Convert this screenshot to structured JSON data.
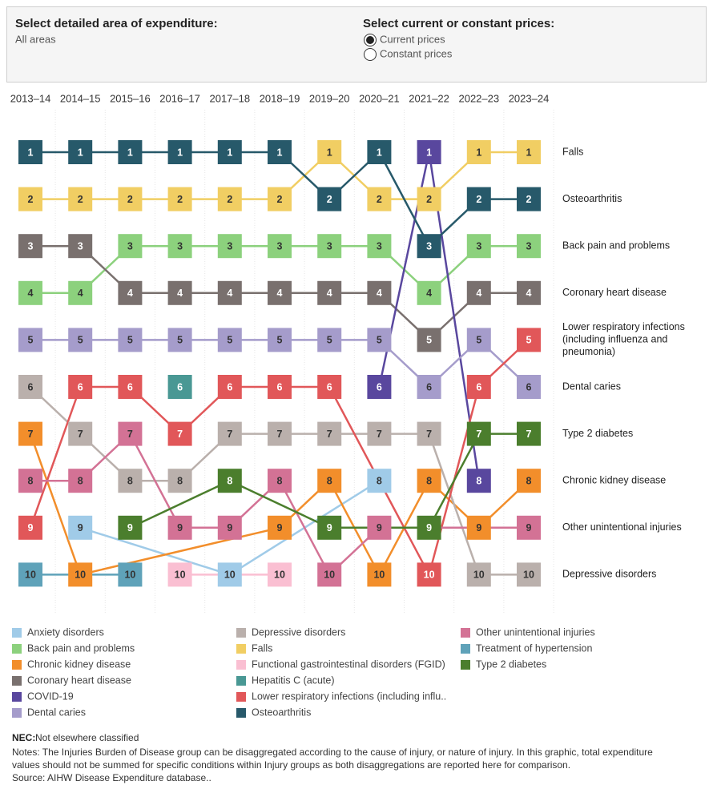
{
  "controls": {
    "area_title": "Select detailed area of expenditure:",
    "area_value": "All areas",
    "price_title": "Select current or constant prices:",
    "price_options": [
      "Current prices",
      "Constant prices"
    ],
    "selected": 0
  },
  "chart_data": {
    "type": "bump",
    "categories": [
      "2013–14",
      "2014–15",
      "2015–16",
      "2016–17",
      "2017–18",
      "2018–19",
      "2019–20",
      "2020–21",
      "2021–22",
      "2022–23",
      "2023–24"
    ],
    "ylim": [
      1,
      10
    ],
    "row_labels": [
      "Falls",
      "Osteoarthritis",
      "Back pain and problems",
      "Coronary heart disease",
      "Lower respiratory infections (including influenza and pneumonia)",
      "Dental caries",
      "Type 2 diabetes",
      "Chronic kidney disease",
      "Other unintentional injuries",
      "Depressive disorders"
    ],
    "series": [
      {
        "name": "Anxiety disorders",
        "color": "#a0cbe8",
        "values": [
          null,
          9,
          null,
          null,
          10,
          null,
          null,
          8,
          null,
          null,
          null
        ]
      },
      {
        "name": "Back pain and problems",
        "color": "#8cd17d",
        "values": [
          4,
          4,
          3,
          3,
          3,
          3,
          3,
          3,
          4,
          3,
          3
        ]
      },
      {
        "name": "Chronic kidney disease",
        "color": "#f28e2b",
        "values": [
          7,
          10,
          null,
          null,
          null,
          9,
          8,
          10,
          8,
          9,
          8
        ]
      },
      {
        "name": "Coronary heart disease",
        "color": "#79706e",
        "values": [
          3,
          3,
          4,
          4,
          4,
          4,
          4,
          4,
          5,
          4,
          4
        ]
      },
      {
        "name": "COVID-19",
        "color": "#59479e",
        "values": [
          null,
          null,
          null,
          null,
          null,
          null,
          null,
          6,
          1,
          8,
          null
        ]
      },
      {
        "name": "Dental caries",
        "color": "#a59ccb",
        "values": [
          5,
          5,
          5,
          5,
          5,
          5,
          5,
          5,
          6,
          5,
          6
        ]
      },
      {
        "name": "Depressive disorders",
        "color": "#bab0ac",
        "values": [
          6,
          7,
          8,
          8,
          7,
          7,
          7,
          7,
          7,
          10,
          10
        ]
      },
      {
        "name": "Falls",
        "color": "#f1ce63",
        "values": [
          2,
          2,
          2,
          2,
          2,
          2,
          1,
          2,
          2,
          1,
          1
        ]
      },
      {
        "name": "Functional gastrointestinal disorders (FGID)",
        "color": "#fabfd2",
        "values": [
          null,
          null,
          null,
          10,
          null,
          10,
          null,
          null,
          null,
          null,
          null
        ]
      },
      {
        "name": "Hepatitis C (acute)",
        "color": "#499894",
        "values": [
          null,
          null,
          null,
          6,
          null,
          null,
          null,
          null,
          null,
          null,
          null
        ]
      },
      {
        "name": "Lower respiratory infections (including influ..",
        "color": "#e15759",
        "values": [
          9,
          6,
          6,
          7,
          6,
          6,
          6,
          null,
          10,
          6,
          5
        ]
      },
      {
        "name": "Osteoarthritis",
        "color": "#27596a",
        "values": [
          1,
          1,
          1,
          1,
          1,
          1,
          2,
          1,
          3,
          2,
          2
        ]
      },
      {
        "name": "Other unintentional injuries",
        "color": "#d37295",
        "values": [
          8,
          8,
          7,
          9,
          9,
          8,
          10,
          9,
          null,
          null,
          9
        ]
      },
      {
        "name": "Treatment of hypertension",
        "color": "#5fa2b9",
        "values": [
          10,
          null,
          10,
          null,
          null,
          null,
          null,
          null,
          null,
          null,
          null
        ]
      },
      {
        "name": "Type 2 diabetes",
        "color": "#4b7e2d",
        "values": [
          null,
          null,
          9,
          null,
          8,
          null,
          9,
          null,
          9,
          7,
          7
        ]
      }
    ]
  },
  "footer": {
    "nec_label": "NEC:",
    "nec_text": "Not elsewhere classified",
    "notes": [
      "Notes: The Injuries Burden of Disease group can be disaggregated according to the cause of injury, or nature of injury. In this graphic, total expenditure",
      "values should not be summed for specific conditions within Injury groups as both disaggregations are reported here for comparison."
    ],
    "source": "Source: AIHW Disease Expenditure database.."
  }
}
